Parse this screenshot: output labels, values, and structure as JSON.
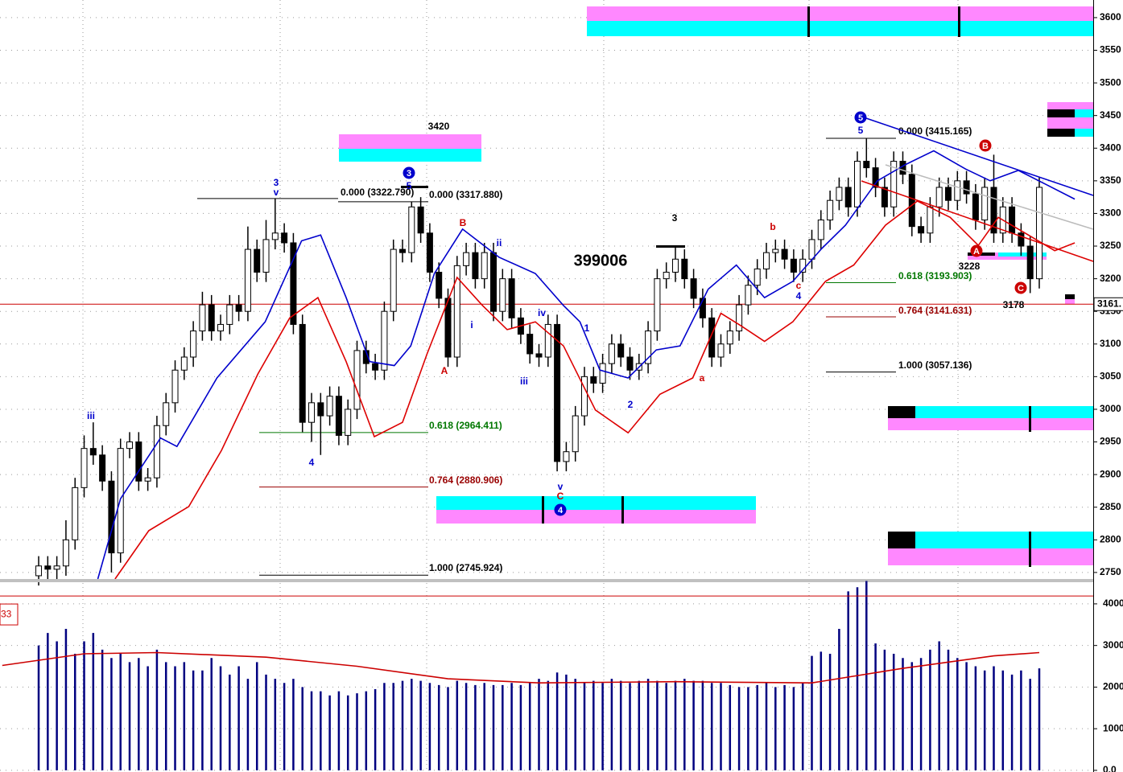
{
  "chart_data": {
    "type": "candlestick",
    "xlim": [
      -4.25,
      115.93
    ],
    "ylim": [
      2740,
      3627
    ],
    "yticks": [
      2750,
      2800,
      2850,
      2900,
      2950,
      3000,
      3050,
      3100,
      3150,
      3200,
      3250,
      3300,
      3350,
      3400,
      3450,
      3500,
      3550,
      3600
    ],
    "grid": true,
    "up_color": "#ffffff",
    "down_color": "#000000",
    "ohlc": [
      [
        2745,
        2775,
        2730,
        2760
      ],
      [
        2760,
        2775,
        2740,
        2755
      ],
      [
        2755,
        2775,
        2740,
        2760
      ],
      [
        2760,
        2830,
        2745,
        2800
      ],
      [
        2800,
        2895,
        2785,
        2880
      ],
      [
        2880,
        2960,
        2865,
        2940
      ],
      [
        2940,
        2980,
        2915,
        2930
      ],
      [
        2930,
        2945,
        2875,
        2890
      ],
      [
        2890,
        2905,
        2750,
        2780
      ],
      [
        2780,
        2955,
        2765,
        2940
      ],
      [
        2940,
        2965,
        2925,
        2950
      ],
      [
        2950,
        2965,
        2875,
        2890
      ],
      [
        2890,
        2910,
        2875,
        2895
      ],
      [
        2895,
        2990,
        2880,
        2975
      ],
      [
        2975,
        3025,
        2960,
        3010
      ],
      [
        3010,
        3075,
        2995,
        3060
      ],
      [
        3060,
        3095,
        3045,
        3080
      ],
      [
        3080,
        3135,
        3065,
        3120
      ],
      [
        3120,
        3180,
        3105,
        3160
      ],
      [
        3160,
        3175,
        3105,
        3120
      ],
      [
        3120,
        3145,
        3105,
        3130
      ],
      [
        3130,
        3175,
        3115,
        3160
      ],
      [
        3160,
        3175,
        3135,
        3150
      ],
      [
        3150,
        3280,
        3135,
        3245
      ],
      [
        3245,
        3260,
        3195,
        3210
      ],
      [
        3210,
        3290,
        3195,
        3260
      ],
      [
        3260,
        3323,
        3245,
        3270
      ],
      [
        3270,
        3285,
        3240,
        3255
      ],
      [
        3255,
        3270,
        3115,
        3130
      ],
      [
        3130,
        3145,
        2965,
        2980
      ],
      [
        2980,
        3025,
        2950,
        3010
      ],
      [
        3010,
        3025,
        2930,
        2990
      ],
      [
        2990,
        3035,
        2975,
        3020
      ],
      [
        3020,
        3035,
        2945,
        2960
      ],
      [
        2960,
        3015,
        2945,
        3000
      ],
      [
        3000,
        3105,
        2985,
        3090
      ],
      [
        3090,
        3105,
        3055,
        3070
      ],
      [
        3070,
        3085,
        3045,
        3060
      ],
      [
        3060,
        3165,
        3045,
        3150
      ],
      [
        3150,
        3260,
        3135,
        3245
      ],
      [
        3245,
        3260,
        3225,
        3240
      ],
      [
        3240,
        3318,
        3225,
        3310
      ],
      [
        3310,
        3325,
        3255,
        3270
      ],
      [
        3270,
        3285,
        3195,
        3210
      ],
      [
        3210,
        3225,
        3155,
        3170
      ],
      [
        3170,
        3185,
        3065,
        3080
      ],
      [
        3080,
        3235,
        3065,
        3220
      ],
      [
        3220,
        3255,
        3205,
        3240
      ],
      [
        3240,
        3255,
        3185,
        3200
      ],
      [
        3200,
        3255,
        3185,
        3240
      ],
      [
        3240,
        3255,
        3135,
        3150
      ],
      [
        3150,
        3215,
        3135,
        3200
      ],
      [
        3200,
        3215,
        3125,
        3140
      ],
      [
        3140,
        3155,
        3100,
        3115
      ],
      [
        3115,
        3130,
        3070,
        3085
      ],
      [
        3085,
        3100,
        3065,
        3080
      ],
      [
        3080,
        3145,
        3065,
        3130
      ],
      [
        3130,
        3145,
        2905,
        2920
      ],
      [
        2920,
        2950,
        2905,
        2935
      ],
      [
        2935,
        3005,
        2920,
        2990
      ],
      [
        2990,
        3065,
        2975,
        3050
      ],
      [
        3050,
        3065,
        3025,
        3040
      ],
      [
        3040,
        3085,
        3025,
        3070
      ],
      [
        3070,
        3115,
        3055,
        3100
      ],
      [
        3100,
        3115,
        3065,
        3080
      ],
      [
        3080,
        3095,
        3045,
        3060
      ],
      [
        3060,
        3085,
        3045,
        3070
      ],
      [
        3070,
        3135,
        3055,
        3120
      ],
      [
        3120,
        3215,
        3105,
        3200
      ],
      [
        3200,
        3225,
        3185,
        3210
      ],
      [
        3210,
        3250,
        3195,
        3230
      ],
      [
        3230,
        3245,
        3185,
        3200
      ],
      [
        3200,
        3215,
        3155,
        3170
      ],
      [
        3170,
        3185,
        3125,
        3140
      ],
      [
        3140,
        3155,
        3065,
        3080
      ],
      [
        3080,
        3115,
        3065,
        3100
      ],
      [
        3100,
        3135,
        3085,
        3120
      ],
      [
        3120,
        3175,
        3105,
        3160
      ],
      [
        3160,
        3205,
        3145,
        3190
      ],
      [
        3190,
        3230,
        3175,
        3215
      ],
      [
        3215,
        3255,
        3200,
        3240
      ],
      [
        3240,
        3260,
        3225,
        3245
      ],
      [
        3245,
        3260,
        3215,
        3230
      ],
      [
        3230,
        3245,
        3195,
        3210
      ],
      [
        3210,
        3245,
        3195,
        3230
      ],
      [
        3230,
        3275,
        3215,
        3260
      ],
      [
        3260,
        3305,
        3245,
        3290
      ],
      [
        3290,
        3335,
        3275,
        3320
      ],
      [
        3320,
        3355,
        3305,
        3340
      ],
      [
        3340,
        3355,
        3295,
        3310
      ],
      [
        3310,
        3395,
        3295,
        3380
      ],
      [
        3380,
        3415,
        3355,
        3370
      ],
      [
        3370,
        3385,
        3325,
        3340
      ],
      [
        3340,
        3355,
        3295,
        3310
      ],
      [
        3310,
        3395,
        3295,
        3380
      ],
      [
        3380,
        3395,
        3345,
        3360
      ],
      [
        3360,
        3375,
        3265,
        3280
      ],
      [
        3280,
        3295,
        3255,
        3270
      ],
      [
        3270,
        3325,
        3255,
        3310
      ],
      [
        3310,
        3355,
        3295,
        3340
      ],
      [
        3340,
        3355,
        3305,
        3320
      ],
      [
        3320,
        3365,
        3305,
        3350
      ],
      [
        3350,
        3365,
        3315,
        3330
      ],
      [
        3330,
        3345,
        3275,
        3290
      ],
      [
        3290,
        3355,
        3275,
        3340
      ],
      [
        3340,
        3390,
        3255,
        3270
      ],
      [
        3270,
        3325,
        3255,
        3310
      ],
      [
        3310,
        3325,
        3255,
        3270
      ],
      [
        3270,
        3285,
        3235,
        3250
      ],
      [
        3250,
        3265,
        3178,
        3200
      ],
      [
        3200,
        3355,
        3185,
        3340
      ]
    ],
    "ma_lines": [
      {
        "color": "#0000cc",
        "x": [
          6.5,
          9,
          13.4,
          15.2,
          19.6,
          24.9,
          28.9,
          31,
          33.8,
          36.4,
          39.1,
          40.9,
          43.5,
          46.6,
          50.6,
          54.6,
          57.7,
          59.5,
          61.7,
          64.8,
          67.9,
          70.5,
          73.6,
          76.7,
          79.8,
          82.9,
          86,
          88.7,
          92.2,
          95.3,
          98.4,
          101.9,
          104.6,
          107.7,
          110.8,
          113.9
        ],
        "values": [
          2740,
          2863,
          2956,
          2943,
          3048,
          3134,
          3258,
          3267,
          3171,
          3073,
          3067,
          3097,
          3208,
          3276,
          3233,
          3208,
          3159,
          3134,
          3060,
          3048,
          3091,
          3097,
          3184,
          3221,
          3171,
          3196,
          3245,
          3282,
          3350,
          3375,
          3396,
          3368,
          3350,
          3366,
          3344,
          3322
        ]
      },
      {
        "color": "#dd0000",
        "x": [
          8.4,
          12.1,
          16.5,
          20.1,
          24.1,
          27.6,
          30.7,
          33.8,
          36.9,
          40,
          42.7,
          46,
          48.8,
          51.5,
          54.6,
          57.7,
          61.2,
          64.8,
          68.3,
          71.9,
          75,
          77.2,
          79.8,
          82.9,
          86.5,
          89.6,
          93.1,
          96.6,
          100.2,
          103.3,
          105.5,
          107.7,
          111.7,
          113.9
        ],
        "values": [
          2740,
          2814,
          2851,
          2937,
          3054,
          3140,
          3171,
          3073,
          2958,
          2980,
          3085,
          3202,
          3159,
          3122,
          3134,
          3097,
          2999,
          2964,
          3023,
          3048,
          3147,
          3128,
          3104,
          3134,
          3196,
          3221,
          3282,
          3319,
          3294,
          3251,
          3294,
          3276,
          3243,
          3255
        ]
      }
    ],
    "fib_levels": [
      {
        "value": 3322.79,
        "label": "0.000 (3322.790)",
        "color": "#000000"
      },
      {
        "value": 3317.88,
        "label": "0.000 (3317.880)",
        "color": "#000000"
      },
      {
        "value": 2964.411,
        "label": "0.618 (2964.411)",
        "color": "#007700"
      },
      {
        "value": 2880.906,
        "label": "0.764 (2880.906)",
        "color": "#990000"
      },
      {
        "value": 2745.924,
        "label": "1.000 (2745.924)",
        "color": "#000000"
      },
      {
        "value": 3415.165,
        "label": "0.000 (3415.165)",
        "color": "#000000"
      },
      {
        "value": 3193.903,
        "label": "0.618 (3193.903)",
        "color": "#007700"
      },
      {
        "value": 3141.631,
        "label": "0.764 (3141.631)",
        "color": "#990000"
      },
      {
        "value": 3057.136,
        "label": "1.000 (3057.136)",
        "color": "#000000"
      }
    ],
    "last_price": {
      "value": 3161,
      "label": "3161."
    },
    "annotations": [
      {
        "text": "iii",
        "color": "#0000cc"
      },
      {
        "text": "3",
        "color": "#0000cc"
      },
      {
        "text": "v",
        "color": "#0000cc"
      },
      {
        "text": "4",
        "color": "#0000cc"
      },
      {
        "text": "5",
        "color": "#0000cc"
      },
      {
        "text": "A",
        "color": "#cc0000"
      },
      {
        "text": "B",
        "color": "#cc0000"
      },
      {
        "text": "i",
        "color": "#0000cc"
      },
      {
        "text": "ii",
        "color": "#0000cc"
      },
      {
        "text": "iii",
        "color": "#0000cc"
      },
      {
        "text": "iv",
        "color": "#0000cc"
      },
      {
        "text": "v",
        "color": "#0000cc"
      },
      {
        "text": "C",
        "color": "#cc0000"
      },
      {
        "text": "1",
        "color": "#0000cc"
      },
      {
        "text": "2",
        "color": "#0000cc"
      },
      {
        "text": "3",
        "color": "#000000"
      },
      {
        "text": "a",
        "color": "#cc0000"
      },
      {
        "text": "b",
        "color": "#cc0000"
      },
      {
        "text": "c",
        "color": "#cc0000"
      },
      {
        "text": "4",
        "color": "#0000cc"
      },
      {
        "text": "5",
        "color": "#0000cc"
      },
      {
        "text": "3420",
        "color": "#000000"
      },
      {
        "text": "399006",
        "color": "#000000"
      },
      {
        "text": "3228",
        "color": "#000000"
      },
      {
        "text": "3178",
        "color": "#000000"
      }
    ],
    "circled": [
      {
        "text": "3",
        "color": "#0000cc"
      },
      {
        "text": "4",
        "color": "#0000cc"
      },
      {
        "text": "5",
        "color": "#0000cc"
      },
      {
        "text": "A",
        "color": "#cc0000"
      },
      {
        "text": "B",
        "color": "#cc0000"
      },
      {
        "text": "C",
        "color": "#cc0000"
      }
    ],
    "volume": {
      "color": "#000080",
      "ylim": [
        -40,
        4520
      ],
      "yticks": [
        {
          "value": 0,
          "label": "0.0"
        },
        1000,
        2000,
        3000,
        4000
      ],
      "values": [
        3000,
        3300,
        3100,
        3400,
        2800,
        3100,
        3300,
        2900,
        2700,
        2800,
        2600,
        2700,
        2500,
        2900,
        2600,
        2500,
        2600,
        2400,
        2400,
        2700,
        2500,
        2300,
        2500,
        2200,
        2600,
        2300,
        2200,
        2100,
        2200,
        2000,
        1900,
        1900,
        1800,
        1900,
        1800,
        1850,
        1900,
        1950,
        2100,
        2100,
        2150,
        2200,
        2150,
        2100,
        2050,
        2000,
        2150,
        2100,
        2050,
        2100,
        2050,
        2050,
        2100,
        2050,
        2100,
        2200,
        2150,
        2350,
        2300,
        2200,
        2100,
        2150,
        2100,
        2200,
        2150,
        2100,
        2150,
        2200,
        2150,
        2100,
        2150,
        2200,
        2150,
        2150,
        2100,
        2100,
        2050,
        2000,
        2000,
        2050,
        2100,
        2000,
        2050,
        2000,
        2100,
        2750,
        2850,
        2800,
        3400,
        4300,
        4400,
        4550,
        3050,
        2900,
        2800,
        2700,
        2600,
        2700,
        2900,
        3100,
        2900,
        2700,
        2600,
        2500,
        2400,
        2500,
        2400,
        2300,
        2400,
        2200,
        2450
      ],
      "ma": {
        "color": "#cc0000",
        "x": [
          -4,
          5,
          13,
          25,
          35,
          45,
          55,
          70,
          85,
          95,
          105,
          110
        ],
        "values": [
          2520,
          2800,
          2830,
          2720,
          2500,
          2200,
          2100,
          2130,
          2100,
          2450,
          2750,
          2830
        ]
      },
      "ref_line": {
        "value": 4190,
        "label": "33"
      }
    }
  }
}
